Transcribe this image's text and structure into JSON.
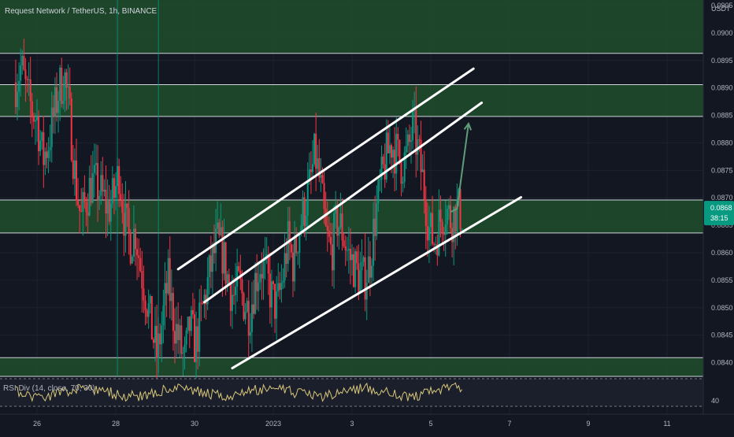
{
  "header": {
    "symbol_title": "Request Network / TetherUS, 1h, BINANCE",
    "currency": "USDT"
  },
  "price_badge": {
    "price": "0.0868",
    "countdown": "38:15",
    "color": "#089981"
  },
  "rsi_panel": {
    "label": "RSI Div (14, close, 70, 30)",
    "level_label": "40",
    "line_color": "#d8c77a"
  },
  "colors": {
    "background": "#131722",
    "up_candle": "#089981",
    "down_candle": "#f23645",
    "zone_fill": "#1e4d2b",
    "zone_border": "#d1d4dc",
    "trend_line": "#ffffff",
    "arrow": "#5f9d7a"
  },
  "chart_data": {
    "type": "candlestick",
    "title": "Request Network / TetherUS, 1h, BINANCE",
    "x_tick_labels": [
      "26",
      "28",
      "30",
      "2023",
      "3",
      "5",
      "7",
      "9",
      "11"
    ],
    "y_tick_labels": [
      "0.0905",
      "0.0900",
      "0.0895",
      "0.0890",
      "0.0885",
      "0.0880",
      "0.0875",
      "0.0870",
      "0.0865",
      "0.0860",
      "0.0855",
      "0.0850",
      "0.0845",
      "0.0840"
    ],
    "ylim": [
      0.08375,
      0.0906
    ],
    "current_price": 0.0868,
    "price_path": [
      [
        0.0891,
        0.0894,
        0.0889
      ],
      [
        0.0886,
        0.0884,
        0.0877
      ],
      [
        0.088,
        0.0885,
        0.089
      ],
      [
        0.0892,
        0.0884,
        0.0873
      ],
      [
        0.0866,
        0.087,
        0.0873
      ],
      [
        0.0872,
        0.087,
        0.0868
      ],
      [
        0.087,
        0.0875,
        0.0866
      ],
      [
        0.0862,
        0.0864,
        0.0857
      ],
      [
        0.0852,
        0.0846,
        0.0841
      ],
      [
        0.0848,
        0.0855,
        0.0848
      ],
      [
        0.0844,
        0.084,
        0.0847
      ],
      [
        0.0843,
        0.0848,
        0.0853
      ],
      [
        0.0858,
        0.0862,
        0.086
      ],
      [
        0.0855,
        0.0852,
        0.0854
      ],
      [
        0.0851,
        0.0849,
        0.0855
      ],
      [
        0.0858,
        0.0856,
        0.0852
      ],
      [
        0.085,
        0.0855,
        0.0862
      ],
      [
        0.0858,
        0.0864,
        0.0868
      ],
      [
        0.0872,
        0.0878,
        0.0872
      ],
      [
        0.0863,
        0.086,
        0.0866
      ],
      [
        0.0864,
        0.086,
        0.0858
      ],
      [
        0.0856,
        0.0855,
        0.0858
      ],
      [
        0.0866,
        0.0872,
        0.0877
      ],
      [
        0.088,
        0.0878,
        0.0876
      ],
      [
        0.0878,
        0.0883,
        0.0878
      ],
      [
        0.0872,
        0.0864,
        0.0862
      ],
      [
        0.0866,
        0.0868,
        0.0866
      ],
      [
        0.0868,
        0.0867
      ]
    ],
    "zones": [
      {
        "from": 0.08963,
        "to": 0.0907
      },
      {
        "from": 0.08848,
        "to": 0.08906
      },
      {
        "from": 0.08636,
        "to": 0.08696
      },
      {
        "from": 0.08375,
        "to": 0.08409
      }
    ],
    "trend_lines": [
      {
        "from": [
          "12/29 14:00",
          0.0857
        ],
        "to": [
          "1/6 02:00",
          0.08935
        ]
      },
      {
        "from": [
          "12/30 06:00",
          0.0851
        ],
        "to": [
          "1/6 07:00",
          0.08873
        ]
      },
      {
        "from": [
          "12/30 23:00",
          0.0839
        ],
        "to": [
          "1/7 07:00",
          0.08701
        ]
      }
    ],
    "projection_arrow": {
      "from": [
        "1/5 16:00",
        0.0868
      ],
      "to": [
        "1/5 23:00",
        0.08835
      ]
    },
    "markers": [
      "12/28 01:00",
      "12/29 02:00"
    ],
    "grid": true
  }
}
